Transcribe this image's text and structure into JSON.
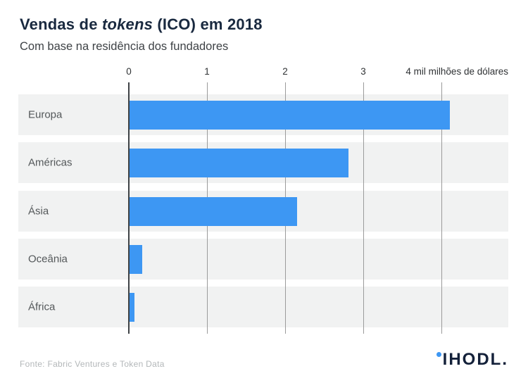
{
  "header": {
    "title": {
      "prefix": "Vendas de ",
      "italic": "tokens",
      "suffix": " (ICO) em 2018"
    },
    "subtitle": "Com base na residência dos fundadores"
  },
  "chart_data": {
    "type": "bar",
    "orientation": "horizontal",
    "title": "Vendas de tokens (ICO) em 2018",
    "subtitle": "Com base na residência dos fundadores",
    "categories": [
      "Europa",
      "Américas",
      "Ásia",
      "Oceânia",
      "África"
    ],
    "values": [
      4.1,
      2.8,
      2.14,
      0.16,
      0.06
    ],
    "unit": "mil milhões de dólares",
    "x_axis": {
      "tick_labels": [
        "0",
        "1",
        "2",
        "3"
      ],
      "tick_values": [
        0,
        1,
        2,
        3,
        4
      ],
      "unit_tick_label": "4 mil milhões de dólares",
      "xlim": [
        0,
        4.85
      ]
    },
    "legend": "none",
    "grid": "vertical",
    "bar_color": "#3d97f3",
    "row_band_color": "#f1f2f2",
    "accent_navy": "#19293f"
  },
  "footer": {
    "source": "Fonte: Fabric Ventures e Token Data"
  },
  "logo": {
    "text": "IHODL.",
    "dot_color": "#3d97f3",
    "text_color": "#14213a"
  }
}
